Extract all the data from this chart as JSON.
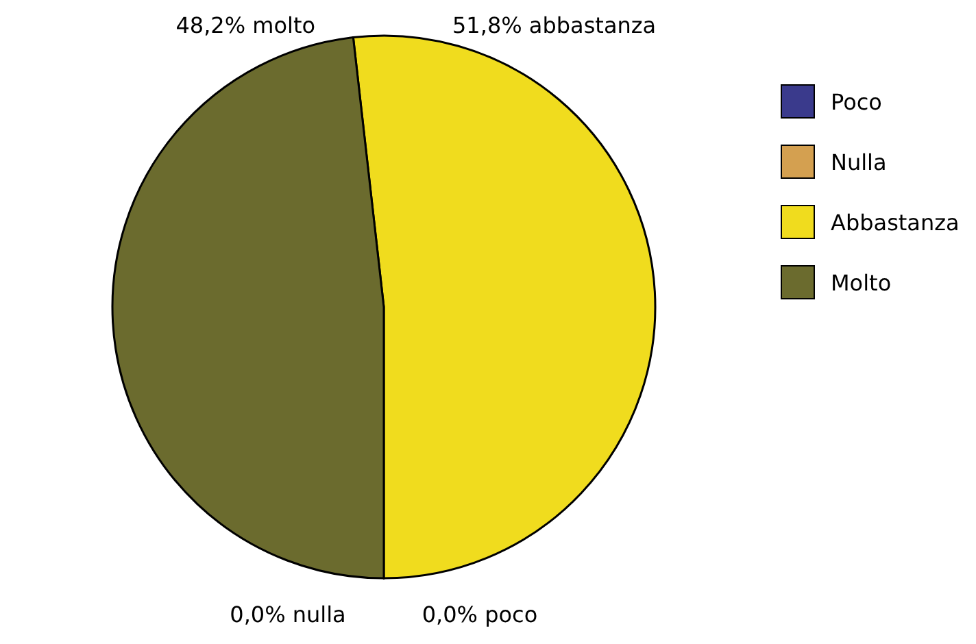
{
  "chart_data": {
    "type": "pie",
    "categories": [
      "Poco",
      "Nulla",
      "Abbastanza",
      "Molto"
    ],
    "values": [
      0,
      0,
      51.8,
      48.2
    ],
    "colors": [
      "#3a3a8c",
      "#d4a050",
      "#f0dc1e",
      "#6b6b2e"
    ],
    "value_labels": [
      "0,0% poco",
      "0,0% nulla",
      "51,8% abbastanza",
      "48,2% molto"
    ],
    "legend": "right"
  }
}
